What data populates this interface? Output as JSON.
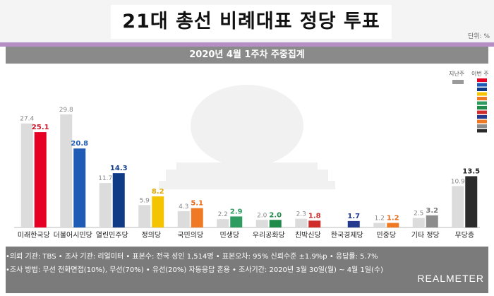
{
  "title": "21대 총선 비례대표 정당 투표",
  "unit_label": "단위: %",
  "subtitle": "2020년 4월 1주차 주중집계",
  "legend": {
    "previous_label": "지난주",
    "current_label": "이번 주"
  },
  "chart_data": {
    "type": "bar",
    "categories": [
      "미래한국당",
      "더불어시민당",
      "열린민주당",
      "정의당",
      "국민의당",
      "민생당",
      "우리공화당",
      "친박신당",
      "한국경제당",
      "민중당",
      "기타 정당",
      "무당층"
    ],
    "series": [
      {
        "name": "지난주",
        "values": [
          27.4,
          29.8,
          11.7,
          5.9,
          4.3,
          2.2,
          2.0,
          2.3,
          null,
          1.2,
          2.5,
          10.9
        ],
        "color": "#dcdcdc"
      },
      {
        "name": "이번 주",
        "values": [
          25.1,
          20.8,
          14.3,
          8.2,
          5.1,
          2.9,
          2.0,
          1.8,
          1.7,
          1.2,
          3.2,
          13.5
        ]
      }
    ],
    "current_colors": [
      "#e60023",
      "#1f5bb5",
      "#0f3a86",
      "#f4c400",
      "#f07a23",
      "#2e9c61",
      "#1f8a49",
      "#d12c2c",
      "#233a8f",
      "#f07a23",
      "#8c8c8c",
      "#2b2b2b"
    ],
    "value_label_colors": [
      "#d01226",
      "#1f5bb5",
      "#0f3a86",
      "#e0a600",
      "#e66a1a",
      "#2e9c61",
      "#1f8a49",
      "#c72a2a",
      "#233a8f",
      "#e66a1a",
      "#7a7a7a",
      "#222222"
    ],
    "ylim": [
      0,
      32
    ]
  },
  "footer": {
    "line1": "•의뢰 기관: TBS • 조사 기관: 리얼미터 • 표본수: 전국 성인 1,514명 • 표본오차: 95% 신뢰수준 ±1.9%p • 응답률: 5.7%",
    "line2": "•조사 방법: 무선 전화면접(10%), 무선(70%) • 유선(20%) 자동응답 혼용 • 조사기간: 2020년 3월 30일(월) ~ 4월 1일(수)",
    "logo": "REALMETER"
  }
}
